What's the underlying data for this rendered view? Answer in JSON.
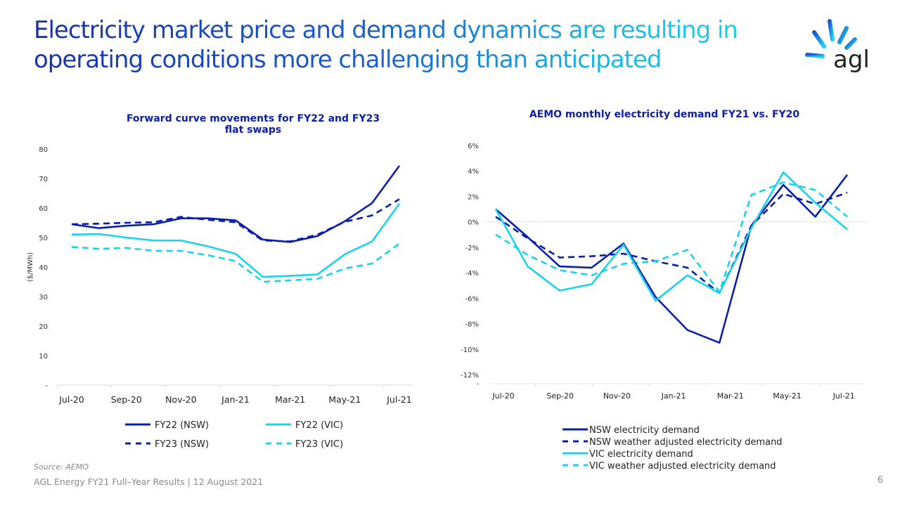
{
  "header": {
    "title_line1": "Electricity market price and demand dynamics are resulting in",
    "title_line2": "operating conditions more challenging than anticipated",
    "logo_text": "agl"
  },
  "colors": {
    "nsw": "#0a1fae",
    "vic": "#19d3ec",
    "title_dark": "#1730b4",
    "title_light": "#21d4ee"
  },
  "chart_data": [
    {
      "type": "line",
      "title": "Forward curve movements for FY22 and FY23 flat swaps",
      "ylabel": "($/MWh)",
      "xlabel": "",
      "ylim": [
        0,
        80
      ],
      "y_ticks": [
        "-",
        "10",
        "20",
        "30",
        "40",
        "50",
        "60",
        "70",
        "80"
      ],
      "x_ticks": [
        "Jul-20",
        "Sep-20",
        "Nov-20",
        "Jan-21",
        "Mar-21",
        "May-21",
        "Jul-21"
      ],
      "categories": [
        "Jul-20",
        "Aug-20",
        "Sep-20",
        "Oct-20",
        "Nov-20",
        "Dec-20",
        "Jan-21",
        "Feb-21",
        "Mar-21",
        "Apr-21",
        "May-21",
        "Jun-21",
        "Jul-21"
      ],
      "grid": false,
      "legend": "bottom",
      "series": [
        {
          "name": "FY22 (NSW)",
          "color": "#0a1fae",
          "dash": false,
          "values": [
            54.5,
            53.2,
            54.0,
            54.5,
            56.5,
            56.5,
            55.8,
            49.3,
            48.5,
            50.5,
            55.5,
            61.7,
            74.3
          ]
        },
        {
          "name": "FY22 (VIC)",
          "color": "#19d3ec",
          "dash": false,
          "values": [
            51.0,
            51.2,
            50.0,
            49.0,
            49.0,
            47.0,
            44.5,
            36.7,
            37.0,
            37.5,
            44.3,
            48.7,
            61.5
          ]
        },
        {
          "name": "FY23 (NSW)",
          "color": "#0a1fae",
          "dash": true,
          "values": [
            54.5,
            54.7,
            55.0,
            55.2,
            57.0,
            56.0,
            55.2,
            49.0,
            48.7,
            51.0,
            55.3,
            57.5,
            63.0
          ]
        },
        {
          "name": "FY23 (VIC)",
          "color": "#19d3ec",
          "dash": true,
          "values": [
            46.8,
            46.2,
            46.5,
            45.5,
            45.5,
            44.0,
            42.0,
            35.0,
            35.5,
            36.0,
            39.5,
            41.2,
            48.0
          ]
        }
      ]
    },
    {
      "type": "line",
      "title": "AEMO monthly electricity demand FY21 vs. FY20",
      "ylabel": "",
      "xlabel": "",
      "ylim": [
        -12,
        6
      ],
      "y_ticks": [
        "6%",
        "4%",
        "2%",
        "0%",
        "-2%",
        "-4%",
        "-6%",
        "-8%",
        "-10%",
        "-12%"
      ],
      "y_bottom_label": "-",
      "x_ticks": [
        "Jul-20",
        "Sep-20",
        "Nov-20",
        "Jan-21",
        "Mar-21",
        "May-21",
        "Jul-21"
      ],
      "grid": false,
      "legend": "bottom",
      "series": [
        {
          "name": "NSW electricity demand",
          "color": "#0a1fae",
          "dash": false,
          "values": [
            1.0,
            -1.2,
            -3.5,
            -3.6,
            -1.7,
            -5.9,
            -8.5,
            -9.5,
            -0.3,
            2.9,
            0.4,
            3.7
          ]
        },
        {
          "name": "NSW weather adjusted electricity demand",
          "color": "#0a1fae",
          "dash": true,
          "values": [
            0.4,
            -1.3,
            -2.8,
            -2.7,
            -2.5,
            -3.1,
            -3.6,
            -5.6,
            -0.3,
            2.2,
            1.4,
            2.3
          ]
        },
        {
          "name": "VIC electricity demand",
          "color": "#19d3ec",
          "dash": false,
          "values": [
            1.0,
            -3.5,
            -5.4,
            -4.9,
            -1.8,
            -6.2,
            -4.2,
            -5.6,
            -0.5,
            3.9,
            1.5,
            -0.6
          ]
        },
        {
          "name": "VIC weather adjusted electricity demand",
          "color": "#19d3ec",
          "dash": true,
          "values": [
            -1.0,
            -2.6,
            -3.8,
            -4.2,
            -3.3,
            -3.1,
            -2.2,
            -5.5,
            2.1,
            3.1,
            2.5,
            0.4
          ]
        }
      ]
    }
  ],
  "footer": {
    "source": "Source: AEMO",
    "text": "AGL Energy FY21 Full–Year Results | 12 August 2021",
    "page": "6"
  }
}
